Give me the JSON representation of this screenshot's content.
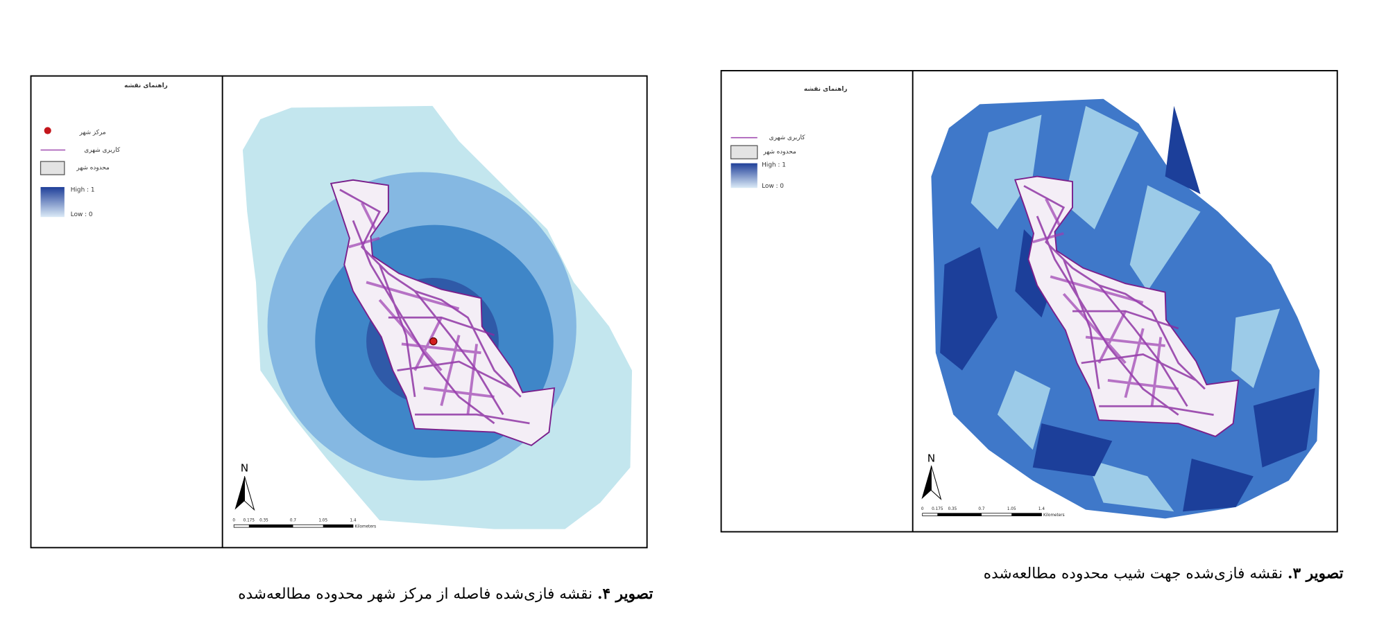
{
  "figure_4": {
    "legend": {
      "title": "راهنمای نقشه",
      "items": [
        "مرکز شهر",
        "کاربری شهری",
        "محدوده شهر",
        "High : 1",
        "Low : 0"
      ]
    },
    "north": "N",
    "scale": {
      "labels": [
        "0",
        "0.175",
        "0.35",
        "0.7",
        "1.05",
        "1.4"
      ],
      "unit": "Kilometers"
    },
    "caption": {
      "label": "تصویر ۴.",
      "text": " نقشه فازی‌شده فاصله از مرکز شهر محدوده مطالعه‌شده"
    }
  },
  "figure_3": {
    "legend": {
      "title": "راهنمای نقشه",
      "items": [
        "کاربری شهری",
        "محدوده شهر",
        "High : 1",
        "Low : 0"
      ]
    },
    "north": "N",
    "scale": {
      "labels": [
        "0",
        "0.175",
        "0.35",
        "0.7",
        "1.05",
        "1.4"
      ],
      "unit": "Kilometers"
    },
    "caption": {
      "label": "تصویر ۳.",
      "text": " نقشه فازی‌شده جهت شیب محدوده مطالعه‌شده"
    }
  }
}
